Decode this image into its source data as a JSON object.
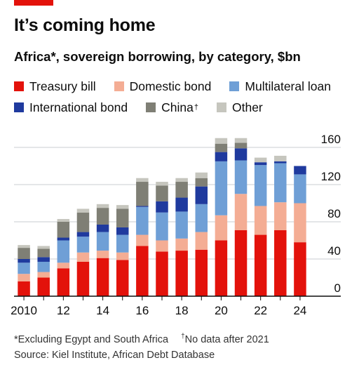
{
  "header": {
    "title": "It’s coming home",
    "subtitle": "Africa*, sovereign borrowing, by category, $bn"
  },
  "legend": [
    {
      "label": "Treasury bill",
      "mark": "",
      "color": "#e3120b"
    },
    {
      "label": "Domestic bond",
      "mark": "",
      "color": "#f4ad94"
    },
    {
      "label": "Multilateral loan",
      "mark": "",
      "color": "#6f9fd6"
    },
    {
      "label": "International bond",
      "mark": "",
      "color": "#1f3a9e"
    },
    {
      "label": "China",
      "mark": "†",
      "color": "#7f7f75"
    },
    {
      "label": "Other",
      "mark": "",
      "color": "#c6c6be"
    }
  ],
  "footnotes": {
    "note1": "*Excluding Egypt and South Africa",
    "note2_mark": "†",
    "note2": "No data after 2021",
    "source": "Source: Kiel Institute, African Debt Database"
  },
  "chart_data": {
    "type": "bar",
    "stacked": true,
    "categories": [
      "2010",
      "2011",
      "2012",
      "2013",
      "2014",
      "2015",
      "2016",
      "2017",
      "2018",
      "2019",
      "2020",
      "2021",
      "2022",
      "2023",
      "2024"
    ],
    "x_tick_labels": [
      "2010",
      "",
      "12",
      "",
      "14",
      "",
      "16",
      "",
      "18",
      "",
      "20",
      "",
      "22",
      "",
      "24"
    ],
    "y_ticks": [
      "0",
      "40",
      "80",
      "120",
      "160"
    ],
    "ylim": [
      0,
      160
    ],
    "series": [
      {
        "name": "Treasury bill",
        "color": "#e3120b",
        "values": [
          16,
          20,
          30,
          37,
          41,
          39,
          54,
          48,
          49,
          50,
          60,
          71,
          66,
          71,
          58
        ]
      },
      {
        "name": "Domestic bond",
        "color": "#f4ad94",
        "values": [
          8,
          6,
          6,
          10,
          8,
          8,
          12,
          12,
          13,
          19,
          27,
          39,
          31,
          30,
          42
        ]
      },
      {
        "name": "Multilateral loan",
        "color": "#6f9fd6",
        "values": [
          12,
          11,
          24,
          17,
          20,
          19,
          30,
          30,
          29,
          30,
          58,
          36,
          44,
          42,
          31
        ]
      },
      {
        "name": "International bond",
        "color": "#1f3a9e",
        "values": [
          4,
          5,
          3,
          5,
          8,
          8,
          1,
          12,
          15,
          19,
          10,
          13,
          3,
          2,
          9
        ]
      },
      {
        "name": "China",
        "color": "#7f7f75",
        "values": [
          12,
          9,
          17,
          21,
          18,
          20,
          26,
          17,
          17,
          9,
          9,
          6,
          0,
          0,
          0
        ]
      },
      {
        "name": "Other",
        "color": "#c6c6be",
        "values": [
          3,
          3,
          3,
          4,
          4,
          4,
          4,
          4,
          4,
          6,
          6,
          5,
          5,
          6,
          0
        ]
      }
    ]
  }
}
